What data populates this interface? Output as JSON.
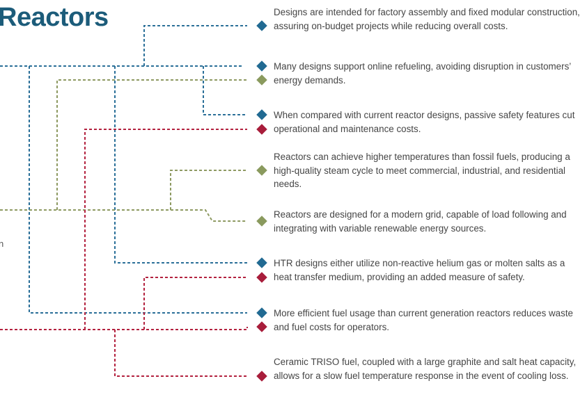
{
  "header": {
    "title": "Reactors",
    "fragment": "n"
  },
  "items": [
    {
      "text": "Designs are intended for factory assembly and fixed modular construction, assuring on-budget projects while reducing overall costs."
    },
    {
      "text": "Many designs support online refueling, avoiding disruption in customers’ energy demands."
    },
    {
      "text": "When compared with current reactor designs, passive safety features cut operational and maintenance costs."
    },
    {
      "text": "Reactors can achieve higher temperatures than fossil fuels, producing a high-quality steam cycle to meet commercial, industrial, and residential needs."
    },
    {
      "text": "Reactors are designed for a modern grid, capable of load following and integrating with variable renewable energy sources."
    },
    {
      "text": "HTR designs either utilize non-reactive helium gas or molten salts as a heat transfer medium, providing an added measure of safety."
    },
    {
      "text": "More efficient fuel usage than current generation reactors reduces waste and fuel costs for operators."
    },
    {
      "text": "Ceramic TRISO fuel, coupled with a large graphite and salt heat capacity, allows for a slow fuel temperature response in the event of cooling loss."
    }
  ]
}
